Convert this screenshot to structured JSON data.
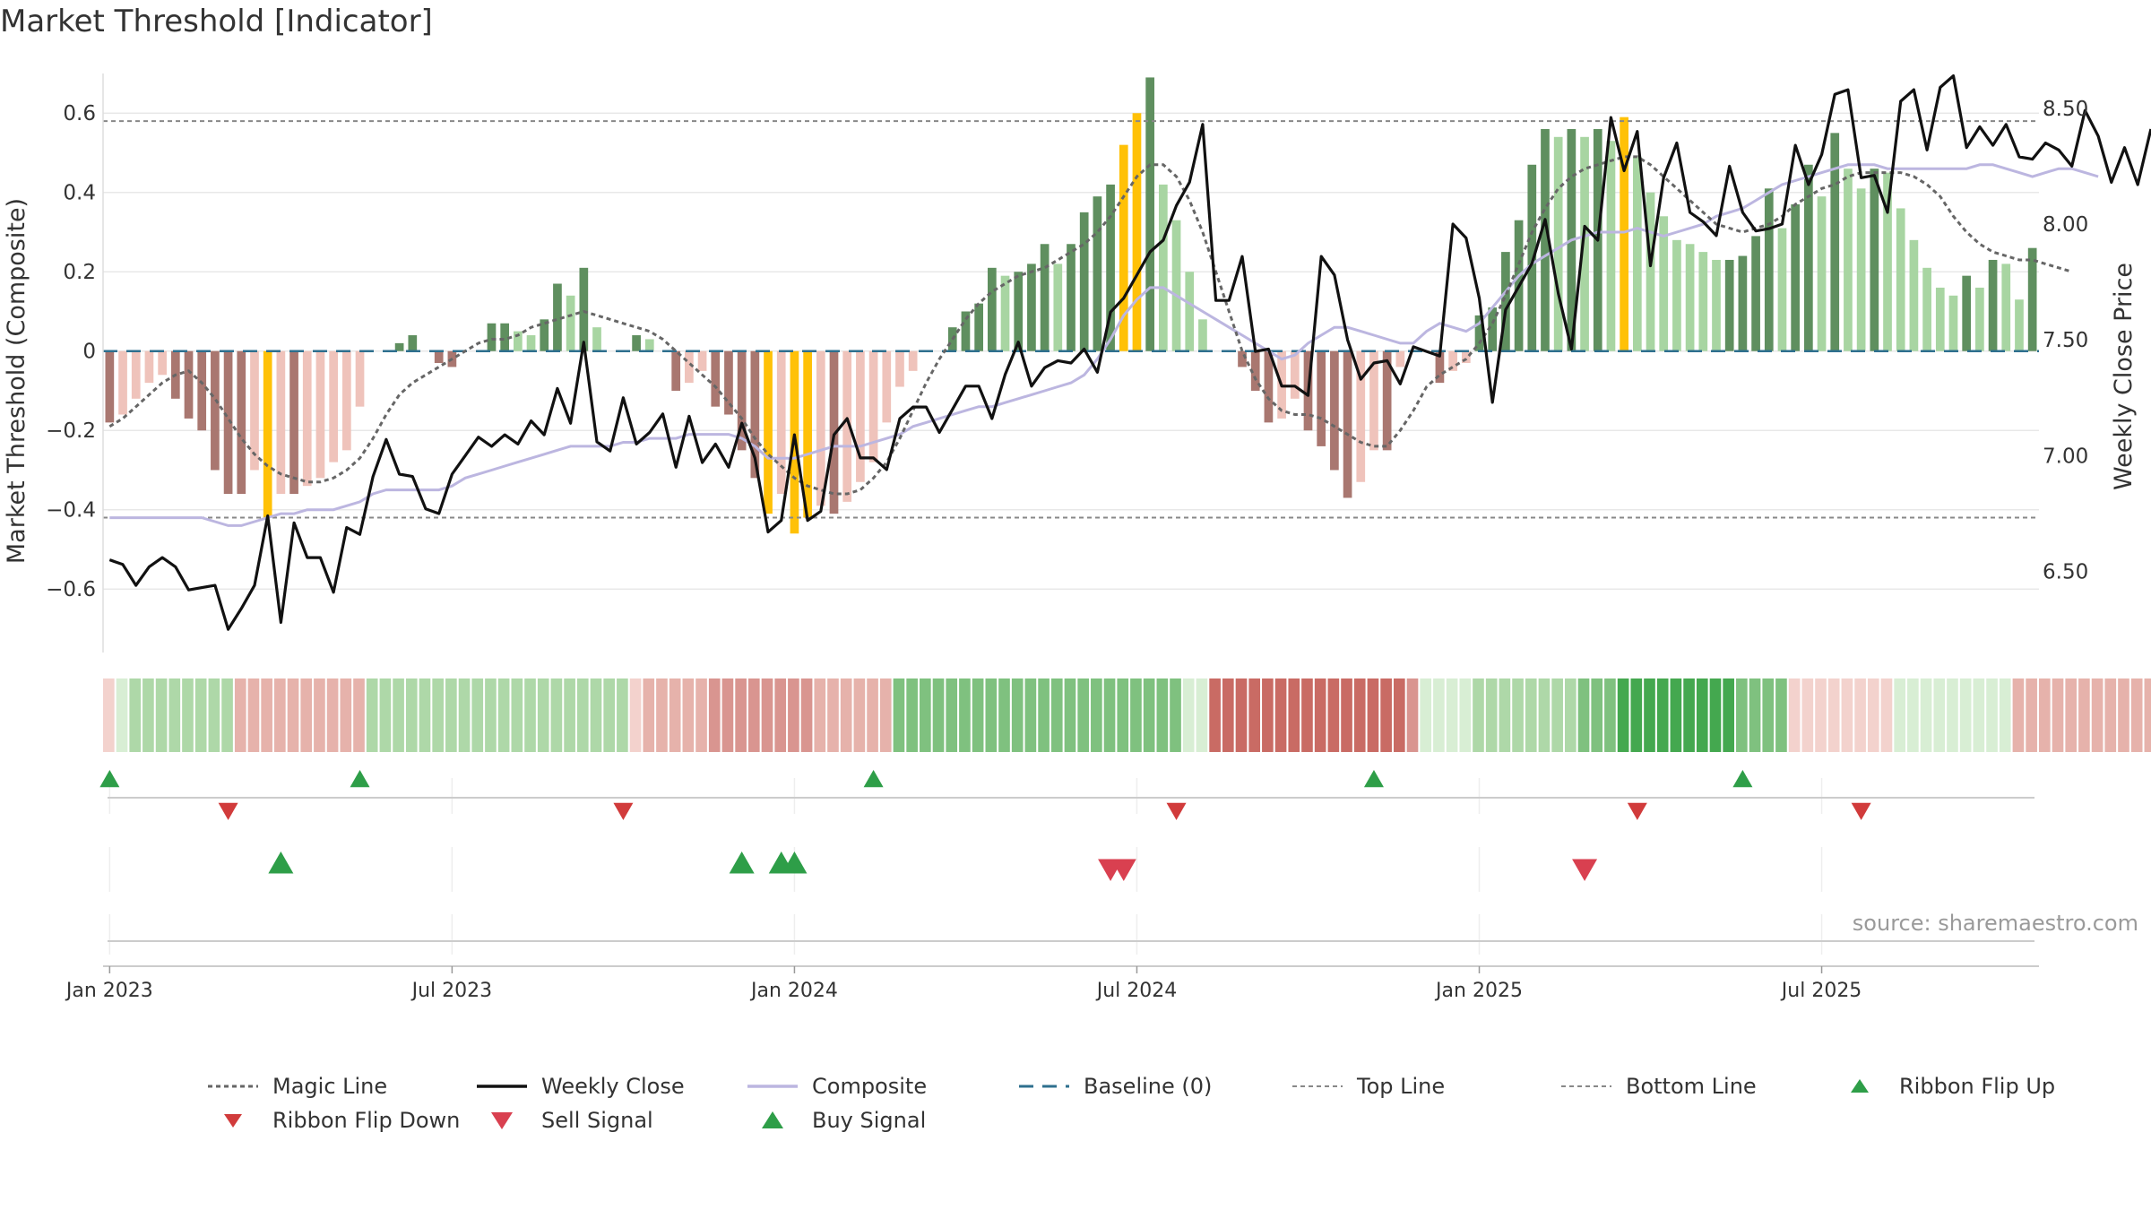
{
  "chart_data": {
    "type": "bar",
    "title": "Market Threshold [Indicator]",
    "source": "source: sharemaestro.com",
    "ylabel_left": "Market Threshold (Composite)",
    "ylabel_right": "Weekly Close Price",
    "ylim_left": [
      -0.76,
      0.7
    ],
    "ylim_right": [
      6.15,
      8.65
    ],
    "yticks_left": [
      {
        "v": 0.6,
        "label": "0.6"
      },
      {
        "v": 0.4,
        "label": "0.4"
      },
      {
        "v": 0.2,
        "label": "0.2"
      },
      {
        "v": 0.0,
        "label": "0"
      },
      {
        "v": -0.2,
        "label": "−0.2"
      },
      {
        "v": -0.4,
        "label": "−0.4"
      },
      {
        "v": -0.6,
        "label": "−0.6"
      }
    ],
    "yticks_right": [
      {
        "v": 8.5,
        "label": "8.50"
      },
      {
        "v": 8.0,
        "label": "8.00"
      },
      {
        "v": 7.5,
        "label": "7.50"
      },
      {
        "v": 7.0,
        "label": "7.00"
      },
      {
        "v": 6.5,
        "label": "6.50"
      }
    ],
    "xticks": [
      {
        "week": 1,
        "label": "Jan 2023"
      },
      {
        "week": 27,
        "label": "Jul 2023"
      },
      {
        "week": 53,
        "label": "Jan 2024"
      },
      {
        "week": 79,
        "label": "Jul 2024"
      },
      {
        "week": 105,
        "label": "Jan 2025"
      },
      {
        "week": 131,
        "label": "Jul 2025"
      }
    ],
    "reference_lines": {
      "top_line": 0.58,
      "bottom_line": -0.42,
      "baseline": 0.0
    },
    "composite_bars": [
      -0.18,
      -0.16,
      -0.12,
      -0.08,
      -0.06,
      -0.12,
      -0.17,
      -0.2,
      -0.3,
      -0.36,
      -0.36,
      -0.3,
      -0.42,
      -0.36,
      -0.36,
      -0.34,
      -0.32,
      -0.28,
      -0.25,
      -0.14,
      0,
      0,
      0.02,
      0.04,
      0,
      -0.03,
      -0.04,
      0,
      0,
      0.07,
      0.07,
      0.05,
      0.04,
      0.08,
      0.17,
      0.14,
      0.21,
      0.06,
      0,
      0,
      0.04,
      0.03,
      0,
      -0.1,
      -0.08,
      -0.05,
      -0.14,
      -0.16,
      -0.25,
      -0.32,
      -0.41,
      -0.36,
      -0.46,
      -0.42,
      -0.39,
      -0.41,
      -0.38,
      -0.33,
      -0.28,
      -0.18,
      -0.09,
      -0.05,
      0,
      0,
      0.06,
      0.1,
      0.12,
      0.21,
      0.19,
      0.2,
      0.22,
      0.27,
      0.22,
      0.27,
      0.35,
      0.39,
      0.42,
      0.52,
      0.6,
      0.69,
      0.42,
      0.33,
      0.2,
      0.08,
      0,
      0,
      -0.04,
      -0.1,
      -0.18,
      -0.17,
      -0.12,
      -0.2,
      -0.24,
      -0.3,
      -0.37,
      -0.33,
      -0.25,
      -0.25,
      -0.04,
      0,
      0,
      -0.08,
      -0.05,
      -0.03,
      0.09,
      0.11,
      0.25,
      0.33,
      0.47,
      0.56,
      0.54,
      0.56,
      0.54,
      0.56,
      0.53,
      0.59,
      0.49,
      0.4,
      0.34,
      0.28,
      0.27,
      0.25,
      0.23,
      0.23,
      0.24,
      0.29,
      0.41,
      0.31,
      0.37,
      0.47,
      0.39,
      0.55,
      0.46,
      0.41,
      0.46,
      0.45,
      0.36,
      0.28,
      0.21,
      0.16,
      0.14,
      0.19,
      0.16,
      0.23,
      0.22,
      0.13,
      0.26
    ],
    "highlight_bars": [
      12,
      50,
      52,
      53,
      77,
      78,
      115
    ],
    "weekly_close": [
      6.55,
      6.53,
      6.44,
      6.52,
      6.56,
      6.52,
      6.42,
      6.43,
      6.44,
      6.25,
      6.34,
      6.44,
      6.74,
      6.28,
      6.71,
      6.56,
      6.56,
      6.41,
      6.69,
      6.66,
      6.91,
      7.07,
      6.92,
      6.91,
      6.77,
      6.75,
      6.92,
      7.0,
      7.08,
      7.04,
      7.09,
      7.05,
      7.15,
      7.09,
      7.29,
      7.14,
      7.49,
      7.06,
      7.02,
      7.25,
      7.05,
      7.1,
      7.18,
      6.95,
      7.17,
      6.97,
      7.05,
      6.95,
      7.14,
      6.99,
      6.67,
      6.72,
      7.09,
      6.72,
      6.76,
      7.09,
      7.16,
      6.99,
      6.99,
      6.94,
      7.16,
      7.21,
      7.21,
      7.1,
      7.2,
      7.3,
      7.3,
      7.16,
      7.35,
      7.49,
      7.3,
      7.38,
      7.41,
      7.4,
      7.46,
      7.36,
      7.62,
      7.68,
      7.78,
      7.88,
      7.93,
      8.08,
      8.18,
      8.43,
      7.67,
      7.67,
      7.86,
      7.45,
      7.46,
      7.3,
      7.3,
      7.26,
      7.86,
      7.78,
      7.5,
      7.33,
      7.4,
      7.41,
      7.31,
      7.47,
      7.45,
      7.43,
      8.0,
      7.94,
      7.68,
      7.23,
      7.63,
      7.73,
      7.83,
      8.02,
      7.7,
      7.46,
      7.99,
      7.93,
      8.46,
      8.23,
      8.4,
      7.82,
      8.2,
      8.35,
      8.05,
      8.01,
      7.95,
      8.25,
      8.05,
      7.97,
      7.98,
      8.0,
      8.34,
      8.17,
      8.3,
      8.56,
      8.58,
      8.2,
      8.21,
      8.05,
      8.53,
      8.58,
      8.32,
      8.59,
      8.64,
      8.33,
      8.42,
      8.34,
      8.43,
      8.29,
      8.28,
      8.35,
      8.32,
      8.25,
      8.49,
      8.38,
      8.18,
      8.33,
      8.17,
      8.41
    ],
    "composite_line": [
      -0.42,
      -0.42,
      -0.42,
      -0.42,
      -0.42,
      -0.42,
      -0.42,
      -0.42,
      -0.43,
      -0.44,
      -0.44,
      -0.43,
      -0.42,
      -0.41,
      -0.41,
      -0.4,
      -0.4,
      -0.4,
      -0.39,
      -0.38,
      -0.36,
      -0.35,
      -0.35,
      -0.35,
      -0.35,
      -0.35,
      -0.34,
      -0.32,
      -0.31,
      -0.3,
      -0.29,
      -0.28,
      -0.27,
      -0.26,
      -0.25,
      -0.24,
      -0.24,
      -0.24,
      -0.24,
      -0.23,
      -0.23,
      -0.22,
      -0.22,
      -0.22,
      -0.21,
      -0.21,
      -0.21,
      -0.21,
      -0.22,
      -0.24,
      -0.27,
      -0.27,
      -0.27,
      -0.26,
      -0.25,
      -0.24,
      -0.24,
      -0.24,
      -0.23,
      -0.22,
      -0.21,
      -0.19,
      -0.18,
      -0.17,
      -0.16,
      -0.15,
      -0.14,
      -0.14,
      -0.13,
      -0.12,
      -0.11,
      -0.1,
      -0.09,
      -0.08,
      -0.06,
      -0.02,
      0.03,
      0.09,
      0.13,
      0.16,
      0.16,
      0.14,
      0.12,
      0.1,
      0.08,
      0.06,
      0.04,
      0.02,
      0,
      -0.02,
      -0.01,
      0.02,
      0.04,
      0.06,
      0.06,
      0.05,
      0.04,
      0.03,
      0.02,
      0.02,
      0.05,
      0.07,
      0.06,
      0.05,
      0.07,
      0.11,
      0.15,
      0.19,
      0.22,
      0.24,
      0.26,
      0.28,
      0.29,
      0.3,
      0.3,
      0.3,
      0.31,
      0.3,
      0.29,
      0.3,
      0.31,
      0.32,
      0.34,
      0.35,
      0.36,
      0.38,
      0.4,
      0.42,
      0.43,
      0.44,
      0.45,
      0.46,
      0.47,
      0.47,
      0.47,
      0.46,
      0.46,
      0.46,
      0.46,
      0.46,
      0.46,
      0.46,
      0.47,
      0.47,
      0.46,
      0.45,
      0.44,
      0.45,
      0.46,
      0.46,
      0.45,
      0.44
    ],
    "magic_line": [
      -0.19,
      -0.17,
      -0.14,
      -0.11,
      -0.08,
      -0.06,
      -0.05,
      -0.08,
      -0.12,
      -0.17,
      -0.22,
      -0.26,
      -0.29,
      -0.31,
      -0.32,
      -0.33,
      -0.33,
      -0.32,
      -0.3,
      -0.27,
      -0.22,
      -0.16,
      -0.11,
      -0.08,
      -0.06,
      -0.04,
      -0.02,
      0,
      0.02,
      0.03,
      0.03,
      0.04,
      0.06,
      0.07,
      0.08,
      0.09,
      0.1,
      0.09,
      0.08,
      0.07,
      0.06,
      0.05,
      0.03,
      0,
      -0.03,
      -0.06,
      -0.09,
      -0.13,
      -0.17,
      -0.22,
      -0.26,
      -0.29,
      -0.32,
      -0.34,
      -0.35,
      -0.36,
      -0.36,
      -0.35,
      -0.32,
      -0.28,
      -0.22,
      -0.15,
      -0.08,
      -0.02,
      0.03,
      0.08,
      0.12,
      0.15,
      0.17,
      0.19,
      0.2,
      0.21,
      0.23,
      0.25,
      0.27,
      0.3,
      0.34,
      0.39,
      0.44,
      0.47,
      0.47,
      0.44,
      0.38,
      0.3,
      0.2,
      0.1,
      0,
      -0.07,
      -0.12,
      -0.15,
      -0.16,
      -0.16,
      -0.17,
      -0.19,
      -0.21,
      -0.23,
      -0.24,
      -0.24,
      -0.2,
      -0.15,
      -0.09,
      -0.06,
      -0.04,
      -0.02,
      0.02,
      0.07,
      0.14,
      0.22,
      0.3,
      0.36,
      0.41,
      0.44,
      0.46,
      0.47,
      0.48,
      0.49,
      0.49,
      0.47,
      0.44,
      0.41,
      0.38,
      0.35,
      0.32,
      0.31,
      0.3,
      0.31,
      0.32,
      0.34,
      0.37,
      0.39,
      0.41,
      0.42,
      0.44,
      0.45,
      0.45,
      0.45,
      0.45,
      0.44,
      0.42,
      0.39,
      0.34,
      0.3,
      0.27,
      0.25,
      0.24,
      0.23,
      0.23,
      0.22,
      0.21,
      0.2
    ],
    "ribbon": [
      -1,
      1,
      2,
      2,
      2,
      2,
      2,
      2,
      2,
      2,
      -2,
      -2,
      -2,
      -2,
      -2,
      -2,
      -2,
      -2,
      -2,
      -2,
      2,
      2,
      2,
      2,
      2,
      2,
      2,
      2,
      2,
      2,
      2,
      2,
      2,
      2,
      2,
      2,
      2,
      2,
      2,
      2,
      -1,
      -2,
      -2,
      -2,
      -2,
      -2,
      -3,
      -3,
      -3,
      -3,
      -3,
      -3,
      -3,
      -3,
      -2,
      -2,
      -2,
      -2,
      -2,
      -2,
      3,
      3,
      3,
      3,
      3,
      3,
      3,
      3,
      3,
      3,
      3,
      3,
      3,
      3,
      3,
      3,
      3,
      3,
      3,
      3,
      3,
      3,
      1,
      1,
      -4,
      -4,
      -4,
      -4,
      -4,
      -4,
      -4,
      -4,
      -4,
      -4,
      -4,
      -4,
      -4,
      -4,
      -4,
      -3,
      1,
      1,
      1,
      1,
      2,
      2,
      2,
      2,
      2,
      2,
      2,
      2,
      3,
      3,
      3,
      4,
      4,
      4,
      4,
      4,
      4,
      4,
      4,
      4,
      3,
      3,
      3,
      3,
      -1,
      -1,
      -1,
      -1,
      -1,
      -1,
      -1,
      -1,
      1,
      1,
      1,
      1,
      1,
      1,
      1,
      1,
      1,
      -2,
      -2,
      -2,
      -2,
      -2,
      -2,
      -2,
      -2,
      -2,
      -2,
      -2
    ],
    "ribbon_flip_up": [
      1,
      20,
      59,
      97,
      125
    ],
    "ribbon_flip_down": [
      10,
      40,
      82,
      117,
      134
    ],
    "buy_signals": [
      13,
      48,
      51,
      52
    ],
    "sell_signals": [
      76,
      77,
      112
    ],
    "legend": [
      {
        "key": "magic",
        "label": "Magic Line"
      },
      {
        "key": "close",
        "label": "Weekly Close"
      },
      {
        "key": "composite",
        "label": "Composite"
      },
      {
        "key": "baseline",
        "label": "Baseline (0)"
      },
      {
        "key": "top",
        "label": "Top Line"
      },
      {
        "key": "bottom",
        "label": "Bottom Line"
      },
      {
        "key": "flipup",
        "label": "Ribbon Flip Up"
      },
      {
        "key": "flipdown",
        "label": "Ribbon Flip Down"
      },
      {
        "key": "sell",
        "label": "Sell Signal"
      },
      {
        "key": "buy",
        "label": "Buy Signal"
      }
    ],
    "colors": {
      "bull_dark": "#5f8f5f",
      "bull_light": "#a8d5a2",
      "bear_dark": "#a97770",
      "bear_light": "#efc3bb",
      "highlight": "#ffc107",
      "close_line": "#111111",
      "composite_line": "#bcb6e0",
      "magic_line": "#666666",
      "baseline": "#2e6f8e",
      "ref_line": "#888888",
      "buy": "#2e9e48",
      "sell": "#d94050",
      "ribbon_up": "#4caf50",
      "ribbon_down": "#c96b64"
    }
  }
}
